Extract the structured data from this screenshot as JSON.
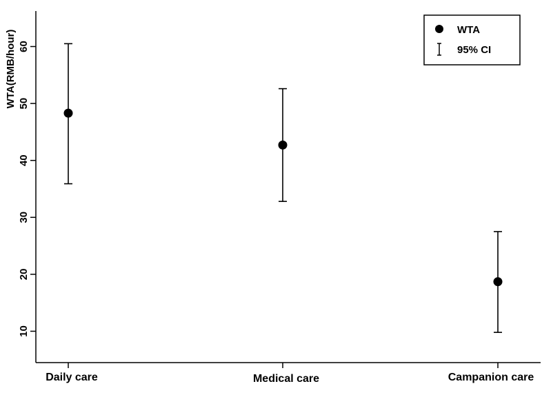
{
  "chart_data": {
    "type": "scatter",
    "subtype": "point-with-error-bars",
    "title": "",
    "xlabel": "",
    "ylabel": "WTA(RMB/hour)",
    "categories": [
      "Daily care",
      "Medical care",
      "Campanion care"
    ],
    "series": [
      {
        "name": "WTA",
        "values": [
          48.3,
          42.7,
          18.7
        ],
        "ci_lower": [
          35.9,
          32.8,
          9.8
        ],
        "ci_upper": [
          60.5,
          52.6,
          27.5
        ],
        "ci_name": "95% CI"
      }
    ],
    "yticks": [
      10,
      20,
      30,
      40,
      50,
      60
    ],
    "ylim": [
      4.5,
      66
    ],
    "grid": false,
    "legend_position": "top-right",
    "marker_color": "#000000"
  }
}
